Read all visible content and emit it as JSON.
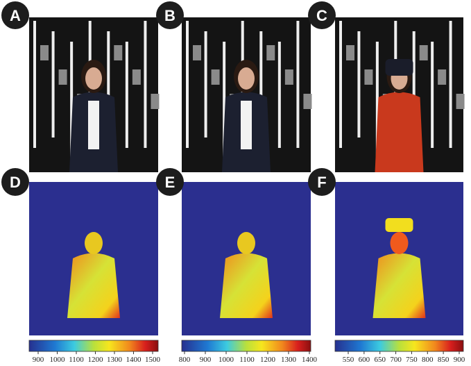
{
  "panels": [
    {
      "label": "A"
    },
    {
      "label": "B"
    },
    {
      "label": "C"
    },
    {
      "label": "D",
      "colorbar_ticks": [
        900,
        1000,
        1100,
        1200,
        1300,
        1400,
        1500
      ]
    },
    {
      "label": "E",
      "colorbar_ticks": [
        800,
        900,
        1000,
        1100,
        1200,
        1300,
        1400
      ]
    },
    {
      "label": "F",
      "colorbar_ticks": [
        550,
        600,
        650,
        700,
        750,
        800,
        850,
        900
      ]
    }
  ]
}
